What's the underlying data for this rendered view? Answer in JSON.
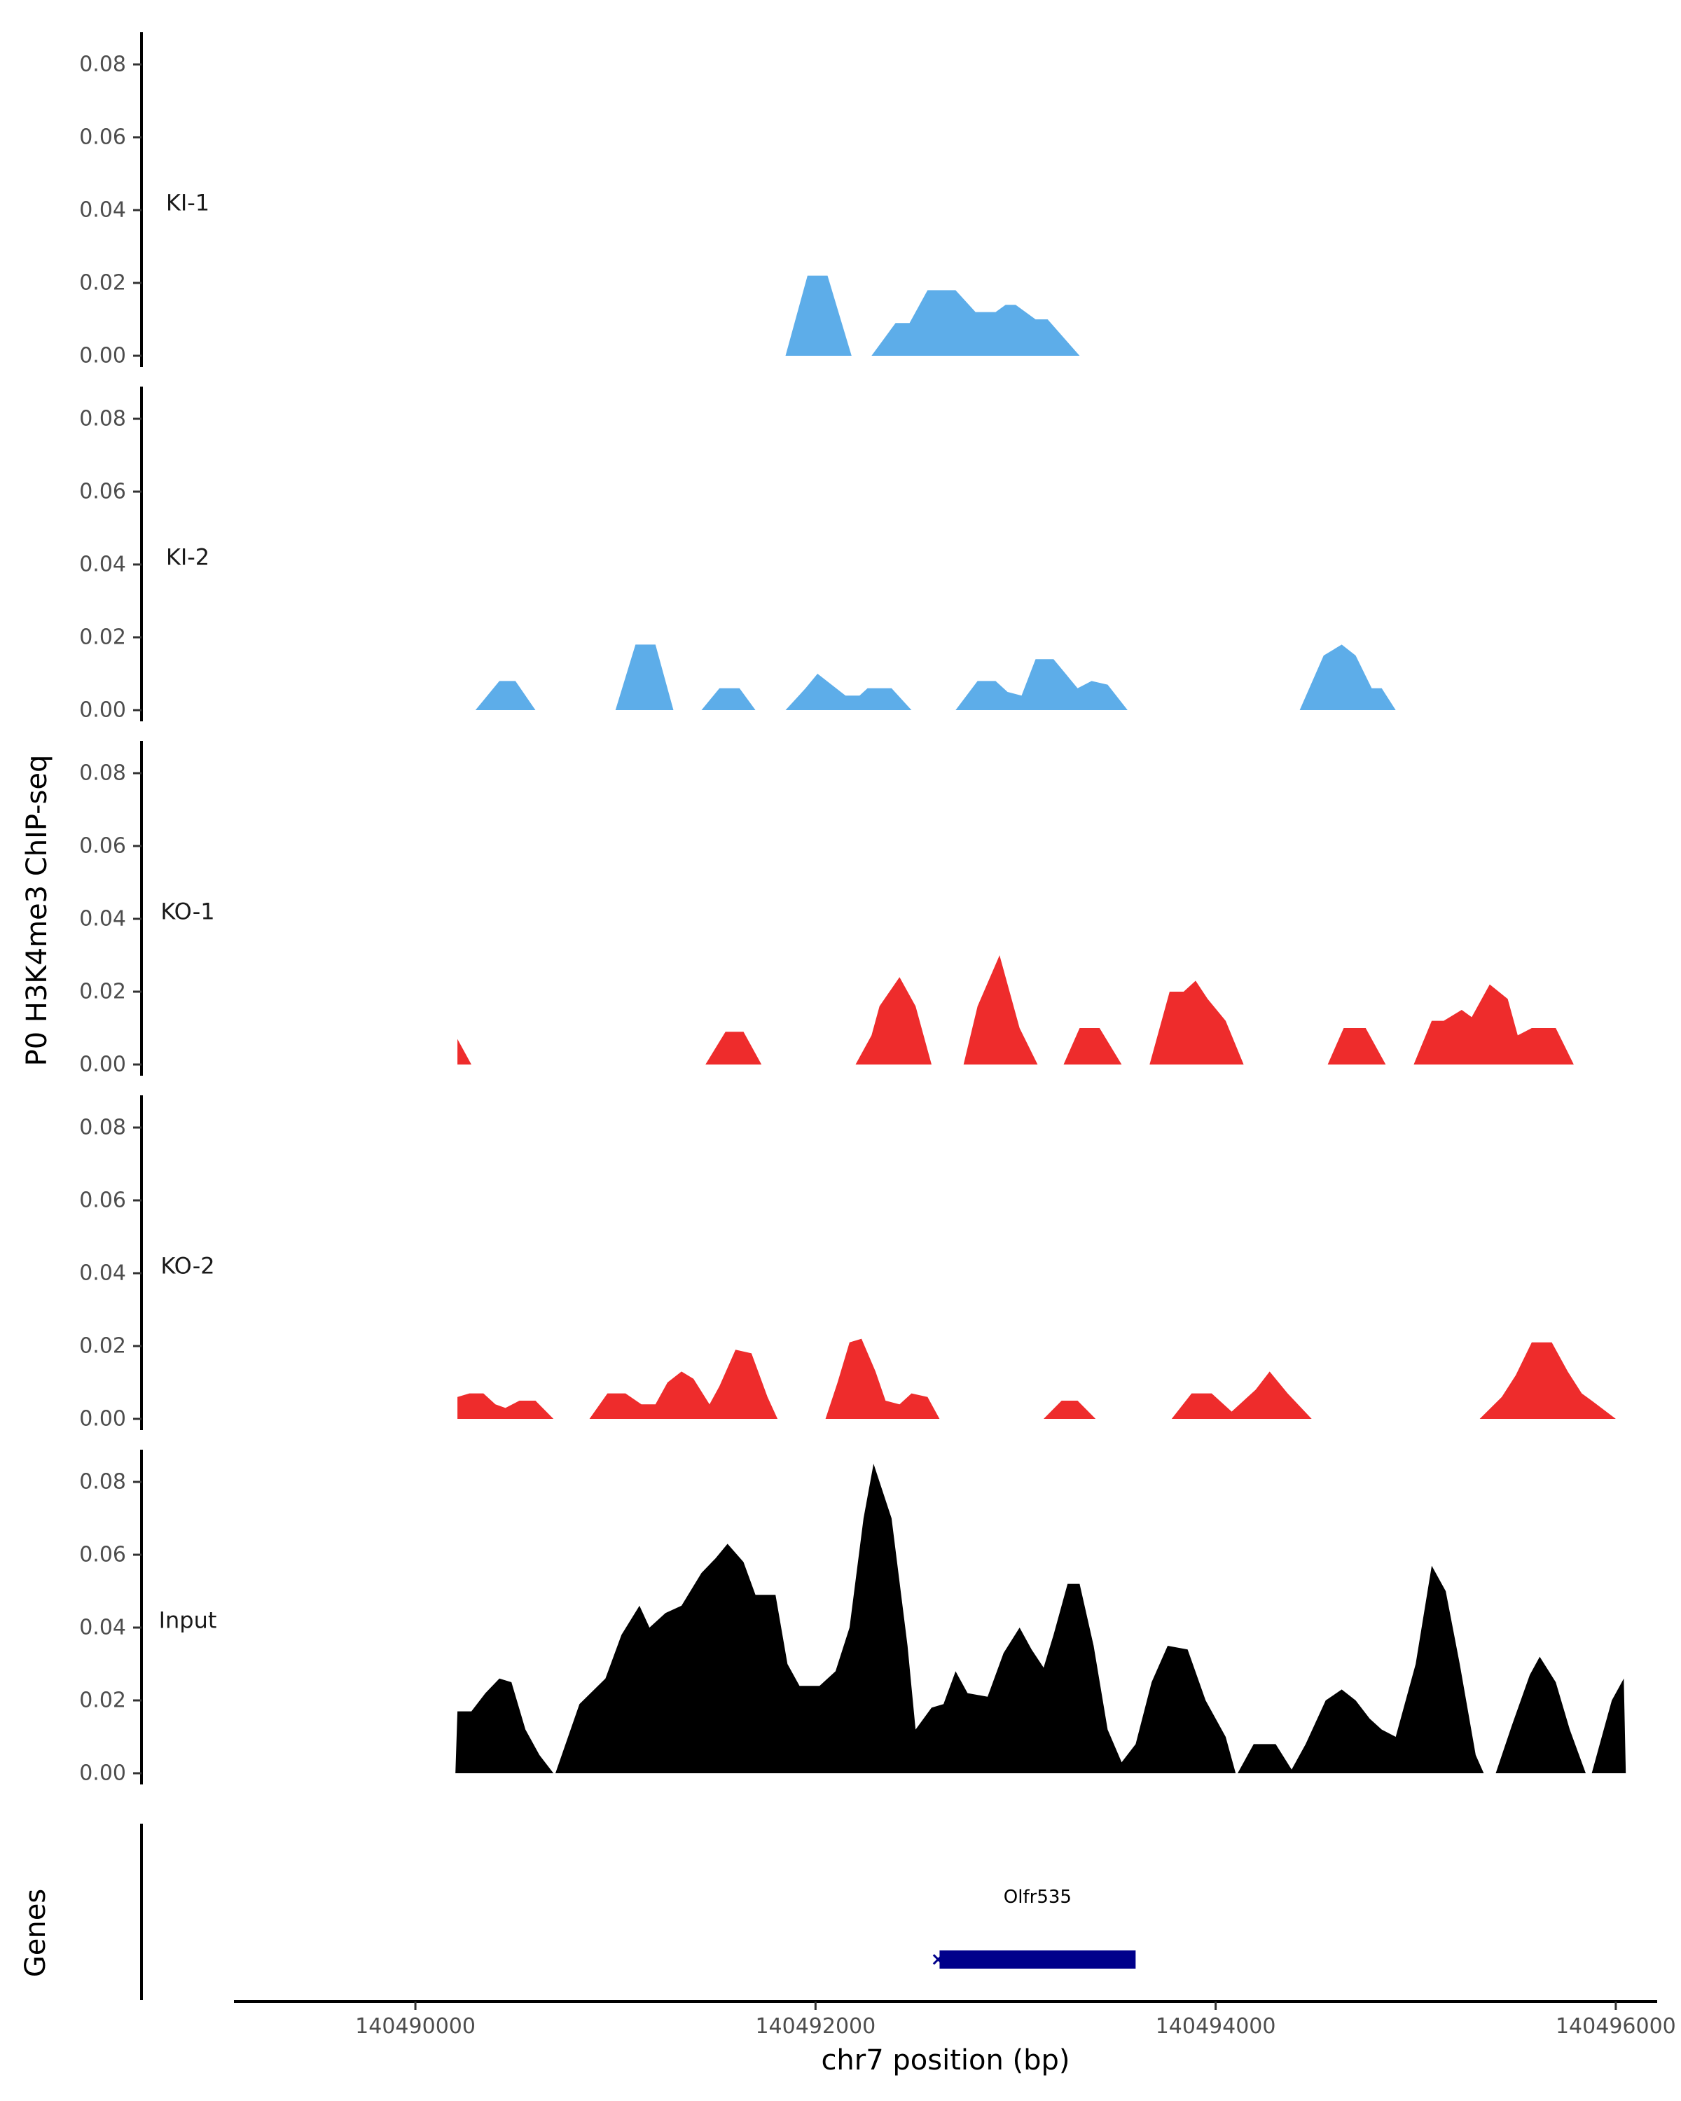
{
  "chart_data": {
    "type": "area",
    "ylabel": "P0 H3K4me3 ChIP-seq",
    "xlabel": "chr7 position (bp)",
    "xlim": [
      140489100,
      140496200
    ],
    "ylim": [
      0,
      0.088
    ],
    "y_ticks": [
      "0.00",
      "0.02",
      "0.04",
      "0.06",
      "0.08"
    ],
    "y_tick_values": [
      0,
      0.02,
      0.04,
      0.06,
      0.08
    ],
    "x_ticks": [
      "140490000",
      "140492000",
      "140494000",
      "140496000"
    ],
    "x_tick_values": [
      140490000,
      140492000,
      140494000,
      140496000
    ],
    "grid": false,
    "colors": {
      "ki": "#5dade9",
      "ko": "#ee2c2c",
      "input": "#000000",
      "gene": "#00008b"
    },
    "tracks": [
      {
        "label": "KI-1",
        "color": "#5dade9",
        "peaks": [
          [
            [
              140491850,
              0
            ],
            [
              140491960,
              0.022
            ],
            [
              140492060,
              0.022
            ],
            [
              140492180,
              0
            ]
          ],
          [
            [
              140492280,
              0
            ],
            [
              140492400,
              0.009
            ],
            [
              140492470,
              0.009
            ],
            [
              140492560,
              0.018
            ],
            [
              140492700,
              0.018
            ],
            [
              140492800,
              0.012
            ],
            [
              140492900,
              0.012
            ],
            [
              140492950,
              0.014
            ],
            [
              140493000,
              0.014
            ],
            [
              140493100,
              0.01
            ],
            [
              140493160,
              0.01
            ],
            [
              140493320,
              0
            ]
          ]
        ]
      },
      {
        "label": "KI-2",
        "color": "#5dade9",
        "peaks": [
          [
            [
              140490300,
              0
            ],
            [
              140490420,
              0.008
            ],
            [
              140490500,
              0.008
            ],
            [
              140490600,
              0
            ]
          ],
          [
            [
              140491000,
              0
            ],
            [
              140491100,
              0.018
            ],
            [
              140491200,
              0.018
            ],
            [
              140491290,
              0
            ]
          ],
          [
            [
              140491430,
              0
            ],
            [
              140491520,
              0.006
            ],
            [
              140491620,
              0.006
            ],
            [
              140491700,
              0
            ]
          ],
          [
            [
              140491850,
              0
            ],
            [
              140491950,
              0.006
            ],
            [
              140492010,
              0.01
            ],
            [
              140492150,
              0.004
            ],
            [
              140492220,
              0.004
            ],
            [
              140492260,
              0.006
            ],
            [
              140492380,
              0.006
            ],
            [
              140492480,
              0
            ]
          ],
          [
            [
              140492700,
              0
            ],
            [
              140492810,
              0.008
            ],
            [
              140492900,
              0.008
            ],
            [
              140492960,
              0.005
            ],
            [
              140493030,
              0.004
            ],
            [
              140493100,
              0.014
            ],
            [
              140493190,
              0.014
            ],
            [
              140493310,
              0.006
            ],
            [
              140493380,
              0.008
            ],
            [
              140493460,
              0.007
            ],
            [
              140493560,
              0
            ]
          ],
          [
            [
              140494420,
              0
            ],
            [
              140494540,
              0.015
            ],
            [
              140494630,
              0.018
            ],
            [
              140494700,
              0.015
            ],
            [
              140494780,
              0.006
            ],
            [
              140494830,
              0.006
            ],
            [
              140494900,
              0
            ]
          ]
        ]
      },
      {
        "label": "KO-1",
        "color": "#ee2c2c",
        "peaks": [
          [
            [
              140490210,
              0
            ],
            [
              140490210,
              0.007
            ],
            [
              140490280,
              0
            ]
          ],
          [
            [
              140491450,
              0
            ],
            [
              140491550,
              0.009
            ],
            [
              140491640,
              0.009
            ],
            [
              140491730,
              0
            ]
          ],
          [
            [
              140492200,
              0
            ],
            [
              140492280,
              0.008
            ],
            [
              140492320,
              0.016
            ],
            [
              140492420,
              0.024
            ],
            [
              140492500,
              0.016
            ],
            [
              140492580,
              0
            ]
          ],
          [
            [
              140492740,
              0
            ],
            [
              140492810,
              0.016
            ],
            [
              140492920,
              0.03
            ],
            [
              140493020,
              0.01
            ],
            [
              140493110,
              0
            ]
          ],
          [
            [
              140493240,
              0
            ],
            [
              140493320,
              0.01
            ],
            [
              140493420,
              0.01
            ],
            [
              140493530,
              0
            ]
          ],
          [
            [
              140493670,
              0
            ],
            [
              140493770,
              0.02
            ],
            [
              140493840,
              0.02
            ],
            [
              140493900,
              0.023
            ],
            [
              140493960,
              0.018
            ],
            [
              140494050,
              0.012
            ],
            [
              140494140,
              0
            ]
          ],
          [
            [
              140494560,
              0
            ],
            [
              140494640,
              0.01
            ],
            [
              140494750,
              0.01
            ],
            [
              140494850,
              0
            ]
          ],
          [
            [
              140494990,
              0
            ],
            [
              140495080,
              0.012
            ],
            [
              140495140,
              0.012
            ],
            [
              140495230,
              0.015
            ],
            [
              140495280,
              0.013
            ],
            [
              140495370,
              0.022
            ],
            [
              140495460,
              0.018
            ],
            [
              140495510,
              0.008
            ],
            [
              140495580,
              0.01
            ],
            [
              140495700,
              0.01
            ],
            [
              140495790,
              0
            ]
          ]
        ]
      },
      {
        "label": "KO-2",
        "color": "#ee2c2c",
        "peaks": [
          [
            [
              140490210,
              0
            ],
            [
              140490210,
              0.006
            ],
            [
              140490270,
              0.007
            ],
            [
              140490340,
              0.007
            ],
            [
              140490400,
              0.004
            ],
            [
              140490450,
              0.003
            ],
            [
              140490520,
              0.005
            ],
            [
              140490600,
              0.005
            ],
            [
              140490690,
              0
            ]
          ],
          [
            [
              140490870,
              0
            ],
            [
              140490960,
              0.007
            ],
            [
              140491050,
              0.007
            ],
            [
              140491130,
              0.004
            ],
            [
              140491200,
              0.004
            ],
            [
              140491260,
              0.01
            ],
            [
              140491330,
              0.013
            ],
            [
              140491390,
              0.011
            ],
            [
              140491470,
              0.004
            ],
            [
              140491520,
              0.009
            ],
            [
              140491600,
              0.019
            ],
            [
              140491680,
              0.018
            ],
            [
              140491760,
              0.006
            ],
            [
              140491810,
              0
            ]
          ],
          [
            [
              140492050,
              0
            ],
            [
              140492110,
              0.01
            ],
            [
              140492170,
              0.021
            ],
            [
              140492230,
              0.022
            ],
            [
              140492300,
              0.013
            ],
            [
              140492350,
              0.005
            ],
            [
              140492420,
              0.004
            ],
            [
              140492480,
              0.007
            ],
            [
              140492560,
              0.006
            ],
            [
              140492620,
              0
            ]
          ],
          [
            [
              140493140,
              0
            ],
            [
              140493230,
              0.005
            ],
            [
              140493310,
              0.005
            ],
            [
              140493400,
              0
            ]
          ],
          [
            [
              140493780,
              0
            ],
            [
              140493880,
              0.007
            ],
            [
              140493980,
              0.007
            ],
            [
              140494080,
              0.002
            ],
            [
              140494200,
              0.008
            ],
            [
              140494270,
              0.013
            ],
            [
              140494360,
              0.007
            ],
            [
              140494480,
              0
            ]
          ],
          [
            [
              140495320,
              0
            ],
            [
              140495430,
              0.006
            ],
            [
              140495500,
              0.012
            ],
            [
              140495580,
              0.021
            ],
            [
              140495680,
              0.021
            ],
            [
              140495760,
              0.013
            ],
            [
              140495830,
              0.007
            ],
            [
              140495880,
              0.005
            ],
            [
              140496000,
              0
            ]
          ]
        ]
      },
      {
        "label": "Input",
        "color": "#000000",
        "peaks": [
          [
            [
              140490200,
              0
            ],
            [
              140490210,
              0.017
            ],
            [
              140490280,
              0.017
            ],
            [
              140490350,
              0.022
            ],
            [
              140490420,
              0.026
            ],
            [
              140490480,
              0.025
            ],
            [
              140490550,
              0.012
            ],
            [
              140490620,
              0.005
            ],
            [
              140490690,
              0
            ]
          ],
          [
            [
              140490700,
              0
            ],
            [
              140490820,
              0.019
            ],
            [
              140490950,
              0.026
            ],
            [
              140491030,
              0.038
            ],
            [
              140491120,
              0.046
            ],
            [
              140491170,
              0.04
            ],
            [
              140491250,
              0.044
            ],
            [
              140491330,
              0.046
            ],
            [
              140491430,
              0.055
            ],
            [
              140491500,
              0.059
            ],
            [
              140491560,
              0.063
            ],
            [
              140491640,
              0.058
            ],
            [
              140491700,
              0.049
            ],
            [
              140491800,
              0.049
            ],
            [
              140491860,
              0.03
            ],
            [
              140491920,
              0.024
            ],
            [
              140492020,
              0.024
            ],
            [
              140492100,
              0.028
            ],
            [
              140492170,
              0.04
            ],
            [
              140492240,
              0.07
            ],
            [
              140492290,
              0.085
            ],
            [
              140492380,
              0.07
            ],
            [
              140492460,
              0.035
            ],
            [
              140492500,
              0.012
            ],
            [
              140492580,
              0.018
            ],
            [
              140492640,
              0.019
            ],
            [
              140492700,
              0.028
            ],
            [
              140492760,
              0.022
            ],
            [
              140492860,
              0.021
            ],
            [
              140492940,
              0.033
            ],
            [
              140493020,
              0.04
            ],
            [
              140493080,
              0.034
            ],
            [
              140493140,
              0.029
            ],
            [
              140493190,
              0.038
            ],
            [
              140493260,
              0.052
            ],
            [
              140493320,
              0.052
            ],
            [
              140493390,
              0.035
            ],
            [
              140493460,
              0.012
            ],
            [
              140493530,
              0.003
            ],
            [
              140493600,
              0.008
            ],
            [
              140493680,
              0.025
            ],
            [
              140493760,
              0.035
            ],
            [
              140493860,
              0.034
            ],
            [
              140493950,
              0.02
            ],
            [
              140494050,
              0.01
            ],
            [
              140494100,
              0
            ]
          ],
          [
            [
              140494110,
              0
            ],
            [
              140494190,
              0.008
            ],
            [
              140494300,
              0.008
            ],
            [
              140494380,
              0.001
            ],
            [
              140494450,
              0.008
            ],
            [
              140494550,
              0.02
            ],
            [
              140494630,
              0.023
            ],
            [
              140494700,
              0.02
            ],
            [
              140494770,
              0.015
            ],
            [
              140494830,
              0.012
            ],
            [
              140494900,
              0.01
            ],
            [
              140495000,
              0.03
            ],
            [
              140495080,
              0.057
            ],
            [
              140495150,
              0.05
            ],
            [
              140495220,
              0.03
            ],
            [
              140495300,
              0.005
            ],
            [
              140495340,
              0
            ]
          ],
          [
            [
              140495400,
              0
            ],
            [
              140495480,
              0.013
            ],
            [
              140495570,
              0.027
            ],
            [
              140495620,
              0.032
            ],
            [
              140495700,
              0.025
            ],
            [
              140495770,
              0.012
            ],
            [
              140495850,
              0
            ]
          ],
          [
            [
              140495880,
              0
            ],
            [
              140495920,
              0.008
            ],
            [
              140495980,
              0.02
            ],
            [
              140496040,
              0.026
            ],
            [
              140496050,
              0
            ]
          ]
        ]
      }
    ],
    "genes_track": {
      "label": "Genes",
      "genes": [
        {
          "name": "Olfr535",
          "start": 140492620,
          "end": 140493600,
          "strand": "-",
          "strand_glyph": "×"
        }
      ]
    }
  }
}
